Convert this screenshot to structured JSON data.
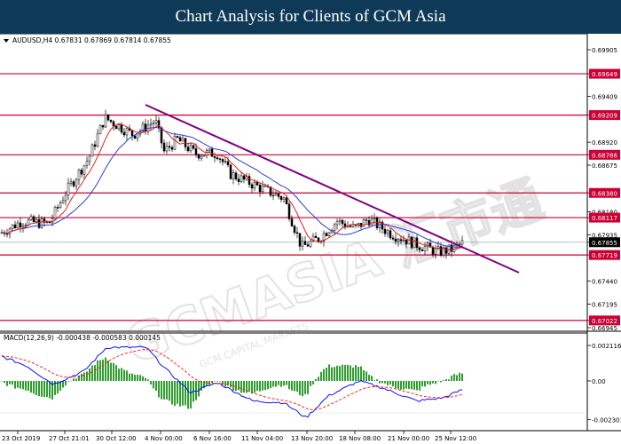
{
  "header": {
    "title": "Chart Analysis for Clients of GCM Asia"
  },
  "watermark": {
    "text": "GCMASIA 汇市通",
    "subtext": "GCM CAPITAL MARKETS"
  },
  "main_chart": {
    "info": "AUDUSD,H4  0.67831 0.67869 0.67814 0.67855",
    "current_price": "0.67855",
    "price_ticks": [
      "0.69905",
      "0.69649",
      "0.69409",
      "0.69209",
      "0.68920",
      "0.68786",
      "0.68675",
      "0.68380",
      "0.68180",
      "0.68117",
      "0.67935",
      "0.67855",
      "0.67719",
      "0.67440",
      "0.67195",
      "0.67022",
      "0.66945"
    ],
    "levels": [
      "0.69649",
      "0.69209",
      "0.68786",
      "0.68380",
      "0.68117",
      "0.67719",
      "0.67022"
    ]
  },
  "macd": {
    "info": "MACD(12,26,9) -0.000438 -0.000583 0.000145",
    "ticks": [
      "0.002116",
      "0.00",
      "-0.002301"
    ]
  },
  "time_axis": {
    "labels": [
      "23 Oct 2019",
      "27 Oct 21:01",
      "30 Oct 12:00",
      "4 Nov 00:00",
      "6 Nov 16:00",
      "11 Nov 04:00",
      "13 Nov 20:00",
      "18 Nov 08:00",
      "21 Nov 00:00",
      "25 Nov 12:00"
    ]
  },
  "colors": {
    "header_bg": "#0f3a57",
    "level_line": "#cc0033",
    "trend_line": "#800080",
    "ma_fast": "#e02020",
    "ma_slow": "#2a3fd6",
    "macd_hist": "#2e9e2e",
    "macd_line": "#1010ff",
    "signal_line": "#ff2020"
  }
}
